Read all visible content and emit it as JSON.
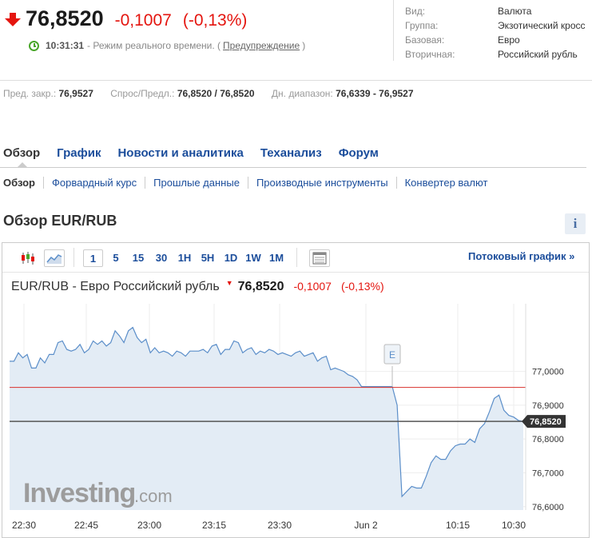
{
  "header": {
    "price": "76,8520",
    "change": "-0,1007",
    "change_pct": "(-0,13%)",
    "time": "10:31:31",
    "mode_text": "- Режим реального времени. (",
    "warning_link": "Предупреждение",
    "mode_close": ")",
    "colors": {
      "down": "#e4150f",
      "clock": "#4aa62b",
      "link": "#1b4d9b"
    }
  },
  "info": [
    {
      "key": "Вид:",
      "value": "Валюта"
    },
    {
      "key": "Группа:",
      "value": "Экзотический кросс"
    },
    {
      "key": "Базовая:",
      "value": "Евро"
    },
    {
      "key": "Вторичная:",
      "value": "Российский рубль"
    }
  ],
  "stats": {
    "prev_close_label": "Пред. закр.:",
    "prev_close": "76,9527",
    "bid_ask_label": "Спрос/Предл.:",
    "bid_ask": "76,8520 / 76,8520",
    "day_range_label": "Дн. диапазон:",
    "day_range": "76,6339 - 76,9527"
  },
  "main_tabs": [
    "Обзор",
    "График",
    "Новости и аналитика",
    "Теханализ",
    "Форум"
  ],
  "sub_tabs": [
    "Обзор",
    "Форвардный курс",
    "Прошлые данные",
    "Производные инструменты",
    "Конвертер валют"
  ],
  "page_title": "Обзор EUR/RUB",
  "info_button": "i",
  "toolbar": {
    "intervals": [
      "1",
      "5",
      "15",
      "30",
      "1H",
      "5H",
      "1D",
      "1W",
      "1M"
    ],
    "selected_interval": "1",
    "stream_link": "Потоковый график »",
    "icons": [
      "candlestick-icon",
      "area-chart-icon",
      "table-icon"
    ]
  },
  "chart_header": {
    "name": "EUR/RUB - Евро Российский рубль",
    "price": "76,8520",
    "change": "-0,1007",
    "change_pct": "(-0,13%)"
  },
  "chart_data": {
    "type": "area",
    "x_labels": [
      "22:30",
      "22:45",
      "23:00",
      "23:15",
      "23:30",
      "Jun 2",
      "10:15",
      "10:30"
    ],
    "y_ticks": [
      77.0,
      76.9,
      76.8,
      76.7,
      76.6
    ],
    "y_tick_labels": [
      "77,0000",
      "76,9000",
      "76,8000",
      "76,7000",
      "76,6000"
    ],
    "ylim": [
      76.59,
      77.2
    ],
    "current_label": "76,8520",
    "current_value": 76.852,
    "prev_close_value": 76.9527,
    "event_marker": "E",
    "watermark": "Investing",
    "watermark_suffix": ".com",
    "colors": {
      "line": "#5b8ec9",
      "fill": "#e3ecf5",
      "prev_close": "#d9302c",
      "current": "#555555"
    },
    "series": [
      {
        "values": [
          77.03,
          77.03,
          77.055,
          77.04,
          77.05,
          77.01,
          77.01,
          77.04,
          77.025,
          77.05,
          77.05,
          77.085,
          77.09,
          77.065,
          77.06,
          77.065,
          77.08,
          77.055,
          77.065,
          77.09,
          77.08,
          77.09,
          77.075,
          77.085,
          77.12,
          77.105,
          77.085,
          77.12,
          77.13,
          77.1,
          77.085,
          77.095,
          77.055,
          77.07,
          77.055,
          77.06,
          77.055,
          77.045,
          77.06,
          77.055,
          77.045,
          77.06,
          77.06,
          77.06,
          77.065,
          77.055,
          77.075,
          77.08,
          77.05,
          77.065,
          77.065,
          77.09,
          77.085,
          77.055,
          77.065,
          77.07,
          77.05,
          77.06,
          77.055,
          77.065,
          77.06,
          77.05,
          77.055,
          77.05,
          77.045,
          77.055,
          77.06,
          77.045,
          77.05,
          77.055,
          77.03,
          77.04,
          77.045,
          77.005,
          77.01,
          77.005,
          77.0,
          76.99,
          76.985,
          76.975,
          76.955,
          76.955,
          76.955,
          76.955,
          76.955,
          76.955,
          76.955,
          76.955
        ]
      },
      {
        "values": [
          76.955,
          76.9,
          76.63,
          76.645,
          76.66,
          76.655,
          76.655,
          76.69,
          76.73,
          76.75,
          76.74,
          76.74,
          76.765,
          76.78,
          76.785,
          76.785,
          76.8,
          76.79,
          76.83,
          76.845,
          76.88,
          76.92,
          76.93,
          76.885,
          76.87,
          76.865,
          76.855,
          76.852
        ]
      }
    ]
  }
}
